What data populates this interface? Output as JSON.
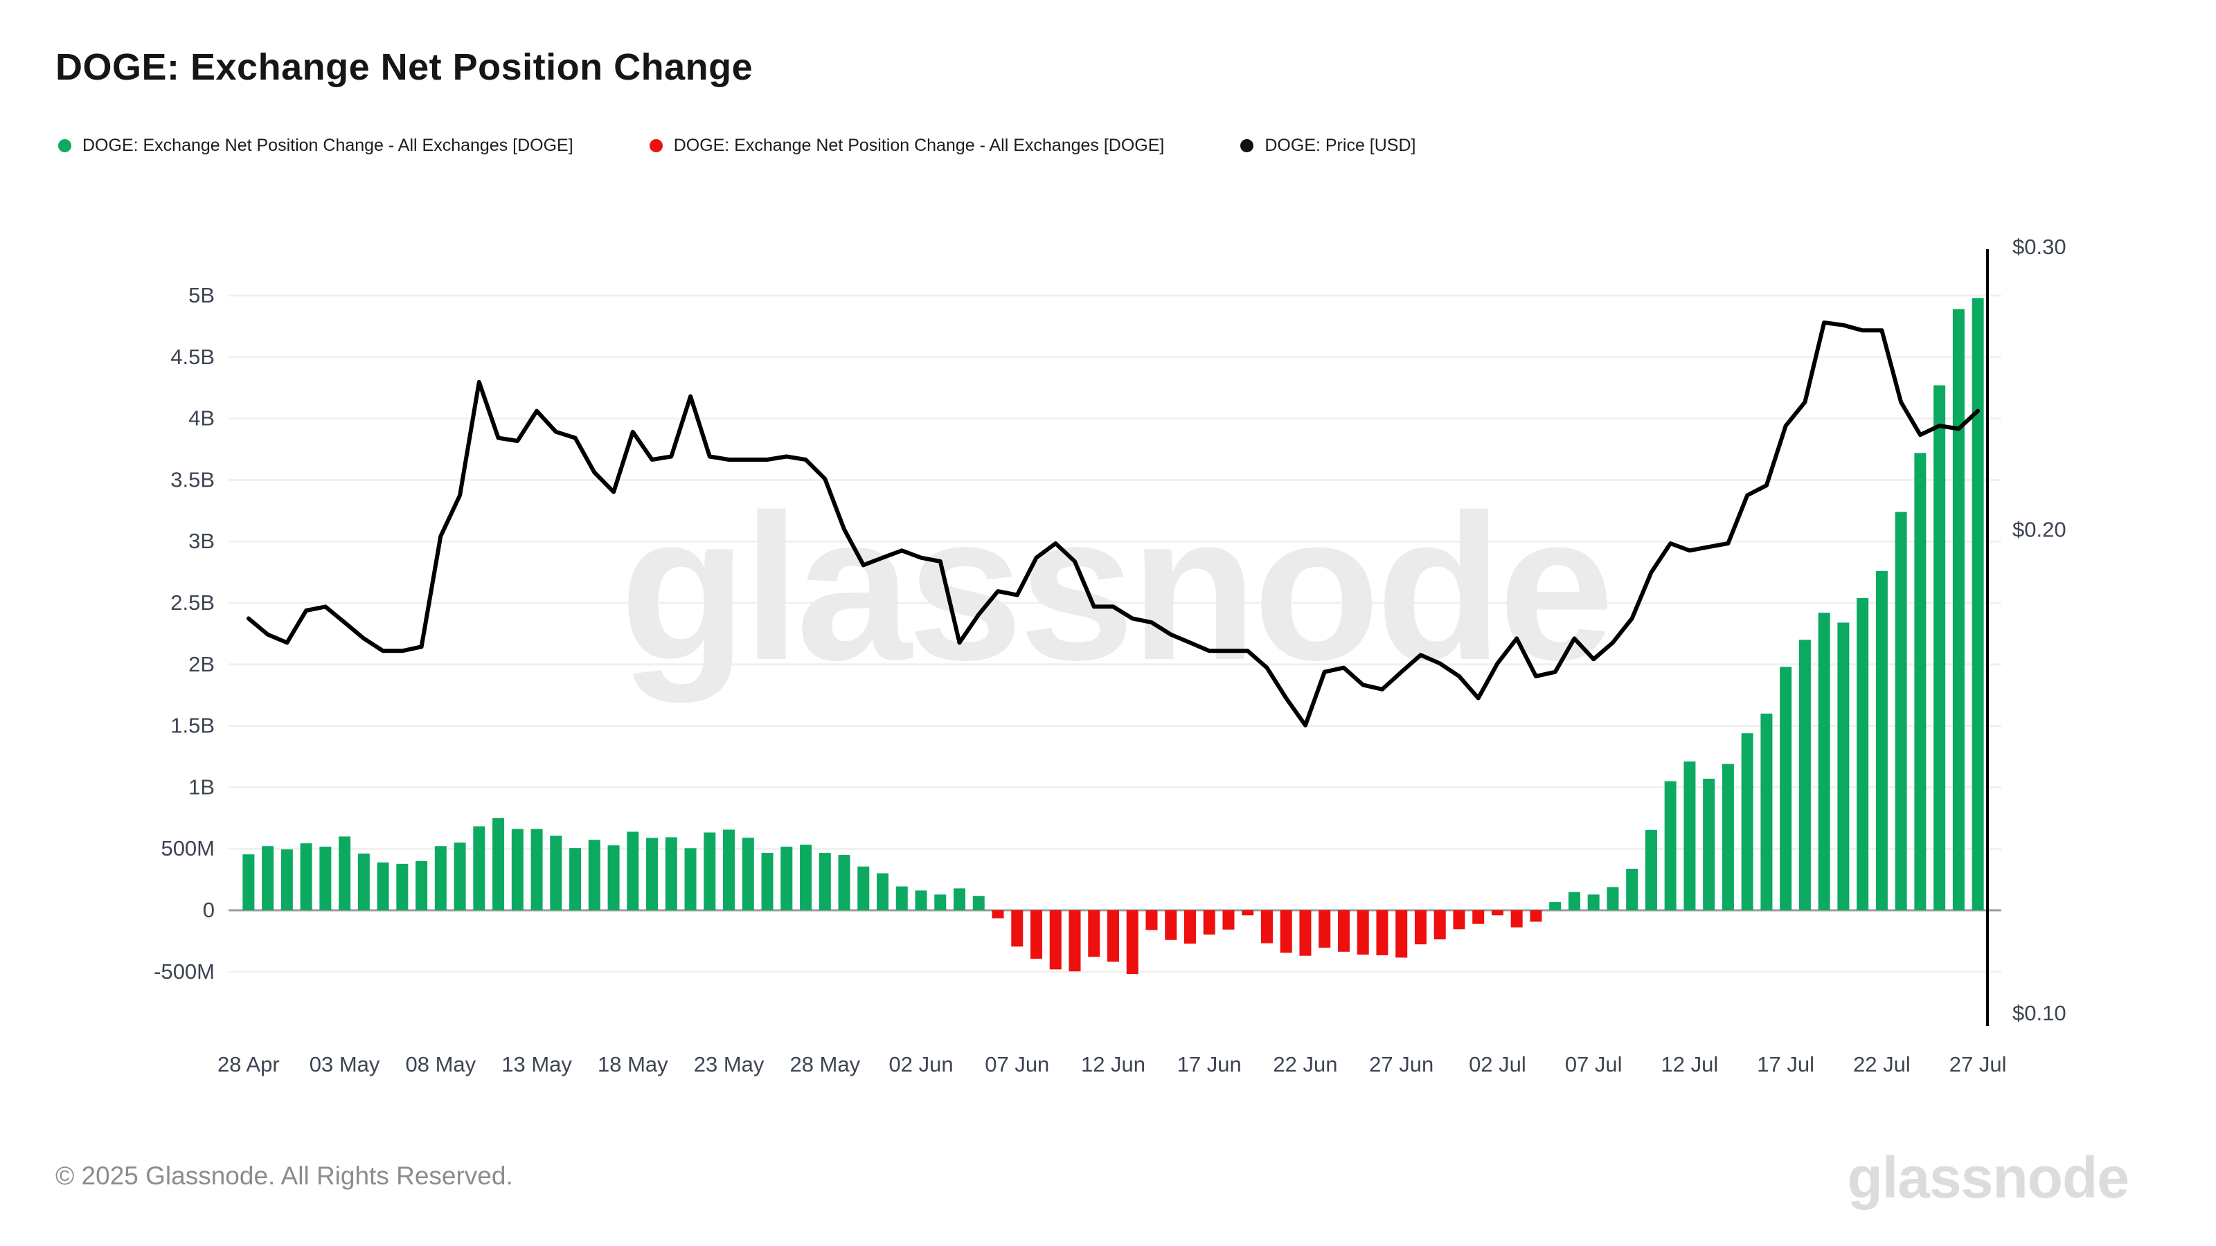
{
  "header": {
    "title": "DOGE: Exchange Net Position Change"
  },
  "legend": {
    "items": [
      {
        "label": "DOGE: Exchange Net Position Change - All Exchanges [DOGE]",
        "color": "#0caa61"
      },
      {
        "label": "DOGE: Exchange Net Position Change - All Exchanges [DOGE]",
        "color": "#ee0f0f"
      },
      {
        "label": "DOGE: Price [USD]",
        "color": "#111111"
      }
    ]
  },
  "watermark": {
    "text": "glassnode"
  },
  "footer": {
    "copyright": "© 2025 Glassnode. All Rights Reserved."
  },
  "brand": {
    "logo_text": "glassnode"
  },
  "colors": {
    "positive": "#0caa61",
    "negative": "#ee0f0f",
    "price_line": "#000000",
    "grid": "#f0f0f0",
    "zero_line": "#9b9b9b",
    "axis_text": "#3d4451",
    "watermark": "#ebebeb"
  },
  "chart_data": {
    "type": "bar",
    "title": "DOGE: Exchange Net Position Change",
    "xlabel": "",
    "ylabel": "",
    "grid": "horizontal",
    "legend_position": "top-left",
    "x_start": "28 Apr",
    "x_end": "27 Jul",
    "x_interval_days": 1,
    "x_tick_labels": [
      "28 Apr",
      "03 May",
      "08 May",
      "13 May",
      "18 May",
      "23 May",
      "28 May",
      "02 Jun",
      "07 Jun",
      "12 Jun",
      "17 Jun",
      "22 Jun",
      "27 Jun",
      "02 Jul",
      "07 Jul",
      "12 Jul",
      "17 Jul",
      "22 Jul",
      "27 Jul"
    ],
    "left_axis": {
      "tick_labels": [
        "5B",
        "4.5B",
        "4B",
        "3.5B",
        "3B",
        "2.5B",
        "2B",
        "1.5B",
        "1B",
        "500M",
        "0",
        "-500M"
      ],
      "tick_values_millions": [
        5000,
        4500,
        4000,
        3500,
        3000,
        2500,
        2000,
        1500,
        1000,
        500,
        0,
        -500
      ],
      "ylim_millions": [
        -750,
        5250
      ]
    },
    "right_axis": {
      "tick_labels": [
        "$0.30",
        "$0.20",
        "$0.10"
      ],
      "tick_values": [
        0.3,
        0.2,
        0.1
      ],
      "scale": "log",
      "ylim": [
        0.095,
        0.315
      ]
    },
    "series": [
      {
        "name": "DOGE: Exchange Net Position Change - All Exchanges [DOGE]",
        "type": "bar",
        "axis": "left",
        "unit": "millions DOGE",
        "values": [
          455,
          522,
          495,
          545,
          517,
          600,
          461,
          389,
          378,
          400,
          522,
          550,
          683,
          750,
          661,
          661,
          606,
          506,
          573,
          528,
          639,
          589,
          594,
          505,
          633,
          656,
          590,
          467,
          517,
          533,
          467,
          450,
          356,
          301,
          194,
          161,
          128,
          178,
          117,
          -65,
          -295,
          -394,
          -481,
          -497,
          -379,
          -419,
          -518,
          -161,
          -241,
          -272,
          -198,
          -157,
          -41,
          -268,
          -346,
          -370,
          -305,
          -337,
          -361,
          -366,
          -385,
          -277,
          -237,
          -154,
          -111,
          -41,
          -139,
          -93,
          67,
          148,
          128,
          189,
          338,
          654,
          1050,
          1210,
          1070,
          1190,
          1440,
          1600,
          1980,
          2200,
          2420,
          2340,
          2540,
          2760,
          3240,
          3720,
          4270,
          4890,
          4980
        ]
      },
      {
        "name": "DOGE: Price [USD]",
        "type": "line",
        "axis": "right",
        "unit": "USD",
        "values": [
          0.176,
          0.172,
          0.17,
          0.178,
          0.179,
          0.175,
          0.171,
          0.168,
          0.168,
          0.169,
          0.198,
          0.21,
          0.247,
          0.228,
          0.227,
          0.237,
          0.23,
          0.228,
          0.217,
          0.211,
          0.23,
          0.221,
          0.222,
          0.242,
          0.222,
          0.221,
          0.221,
          0.221,
          0.222,
          0.221,
          0.215,
          0.2,
          0.19,
          0.192,
          0.194,
          0.192,
          0.191,
          0.17,
          0.177,
          0.183,
          0.182,
          0.192,
          0.196,
          0.191,
          0.179,
          0.179,
          0.176,
          0.175,
          0.172,
          0.17,
          0.168,
          0.168,
          0.168,
          0.164,
          0.157,
          0.151,
          0.163,
          0.164,
          0.16,
          0.159,
          0.163,
          0.167,
          0.165,
          0.162,
          0.157,
          0.165,
          0.171,
          0.162,
          0.163,
          0.171,
          0.166,
          0.17,
          0.176,
          0.188,
          0.196,
          0.194,
          0.195,
          0.196,
          0.21,
          0.213,
          0.232,
          0.24,
          0.269,
          0.268,
          0.266,
          0.266,
          0.24,
          0.229,
          0.232,
          0.231,
          0.237
        ]
      }
    ]
  }
}
